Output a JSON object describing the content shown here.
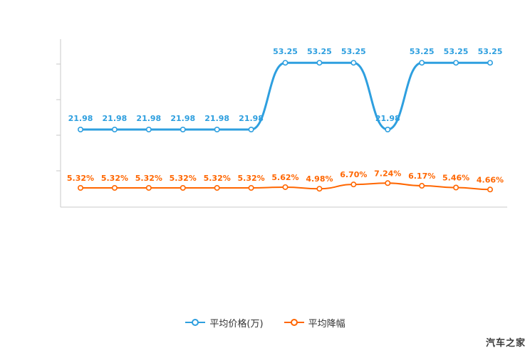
{
  "chart_data": {
    "type": "line",
    "title": "",
    "point_count": 13,
    "grid": false,
    "legend_position": "bottom",
    "axis_color": "#c9c9c9",
    "series": [
      {
        "name": "平均价格(万)",
        "color": "#2e9fdf",
        "unit": "万",
        "values": [
          21.98,
          21.98,
          21.98,
          21.98,
          21.98,
          21.98,
          53.25,
          53.25,
          53.25,
          21.98,
          53.25,
          53.25,
          53.25
        ],
        "labels": [
          "21.98",
          "21.98",
          "21.98",
          "21.98",
          "21.98",
          "21.98",
          "53.25",
          "53.25",
          "53.25",
          "21.98",
          "53.25",
          "53.25",
          "53.25"
        ]
      },
      {
        "name": "平均降幅",
        "color": "#ff6600",
        "unit": "%",
        "values": [
          5.32,
          5.32,
          5.32,
          5.32,
          5.32,
          5.32,
          5.62,
          4.98,
          6.7,
          7.24,
          6.17,
          5.46,
          4.66
        ],
        "labels": [
          "5.32%",
          "5.32%",
          "5.32%",
          "5.32%",
          "5.32%",
          "5.32%",
          "5.62%",
          "4.98%",
          "6.70%",
          "7.24%",
          "6.17%",
          "5.46%",
          "4.66%"
        ]
      }
    ]
  },
  "watermark": "汽车之家",
  "colors": {
    "background": "#ffffff",
    "axis": "#c9c9c9",
    "series_blue": "#2e9fdf",
    "series_orange": "#ff6600"
  }
}
